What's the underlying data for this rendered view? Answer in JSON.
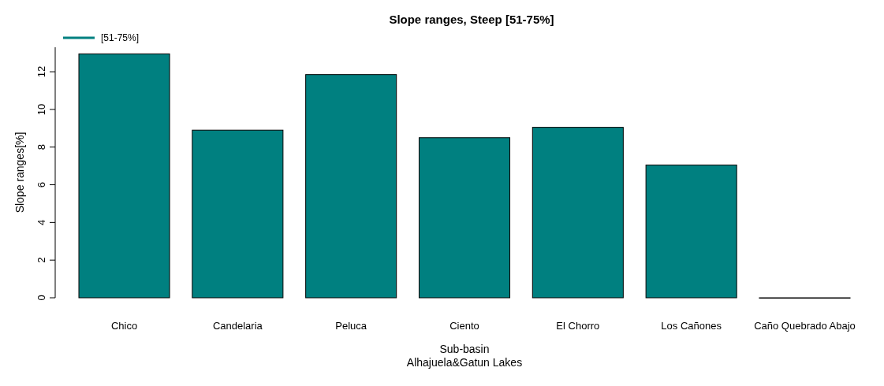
{
  "chart_data": {
    "type": "bar",
    "title": "Slope ranges, Steep [51-75%]",
    "xlabel": "Sub-basin\nAlhajuela&Gatun Lakes",
    "ylabel": "Slope ranges[%]",
    "categories": [
      "Chico",
      "Candelaria",
      "Peluca",
      "Ciento",
      "El Chorro",
      "Los Cañones",
      "Caño Quebrado Abajo"
    ],
    "series": [
      {
        "name": "[51-75%]",
        "color": "#008080",
        "values": [
          12.95,
          8.9,
          11.85,
          8.5,
          9.05,
          7.05,
          0
        ]
      }
    ],
    "ylim": [
      0,
      13.3
    ],
    "yticks": [
      0,
      2,
      4,
      6,
      8,
      10,
      12
    ],
    "grid": false,
    "legend": "top left"
  }
}
